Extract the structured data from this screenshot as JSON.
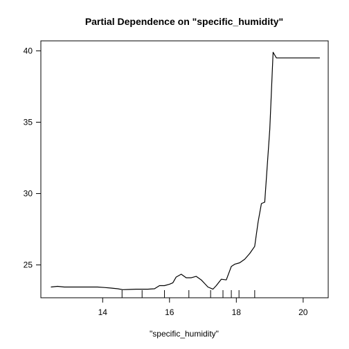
{
  "chart_data": {
    "type": "line",
    "title": "Partial Dependence on \"specific_humidity\"",
    "xlabel": "\"specific_humidity\"",
    "ylabel": "",
    "xlim": [
      12.15,
      20.75
    ],
    "ylim": [
      22.7,
      40.7
    ],
    "x_ticks": [
      14,
      16,
      18,
      20
    ],
    "y_ticks": [
      25,
      30,
      35,
      40
    ],
    "grid": false,
    "legend": "none",
    "line_color": "#000000",
    "series": [
      {
        "x": [
          12.45,
          12.65,
          12.85,
          13.05,
          13.25,
          13.45,
          13.65,
          13.85,
          14.05,
          14.25,
          14.45,
          14.6,
          14.8,
          15.0,
          15.2,
          15.35,
          15.55,
          15.7,
          15.85,
          16.0,
          16.1,
          16.2,
          16.35,
          16.5,
          16.65,
          16.8,
          16.95,
          17.05,
          17.15,
          17.3,
          17.4,
          17.55,
          17.7,
          17.85,
          17.95,
          18.1,
          18.25,
          18.4,
          18.55,
          18.65,
          18.75,
          18.85,
          19.0,
          19.1,
          19.2,
          19.4,
          19.6,
          19.8,
          20.0,
          20.2,
          20.5
        ],
        "y": [
          23.45,
          23.5,
          23.45,
          23.45,
          23.45,
          23.45,
          23.45,
          23.45,
          23.42,
          23.38,
          23.33,
          23.27,
          23.28,
          23.3,
          23.3,
          23.3,
          23.33,
          23.55,
          23.55,
          23.65,
          23.75,
          24.15,
          24.35,
          24.1,
          24.1,
          24.2,
          23.95,
          23.7,
          23.45,
          23.3,
          23.55,
          24.0,
          23.95,
          24.9,
          25.05,
          25.15,
          25.4,
          25.8,
          26.3,
          28.0,
          29.3,
          29.4,
          34.5,
          39.9,
          39.5,
          39.5,
          39.5,
          39.5,
          39.5,
          39.5,
          39.5
        ]
      }
    ],
    "rug_x": [
      14.58,
      15.18,
      15.85,
      16.58,
      17.23,
      17.6,
      17.85,
      18.08,
      18.55
    ]
  }
}
